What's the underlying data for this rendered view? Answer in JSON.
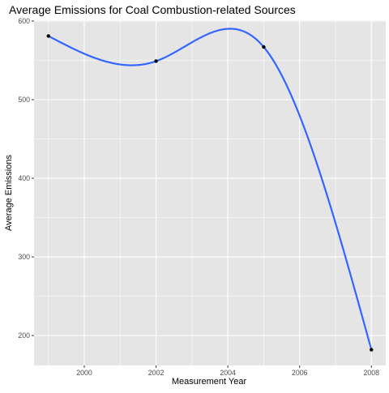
{
  "chart_data": {
    "type": "line",
    "title": "Average Emissions for Coal Combustion-related Sources",
    "xlabel": "Measurement Year",
    "ylabel": "Average Emissions",
    "x": [
      1999,
      2002,
      2005,
      2008
    ],
    "series": [
      {
        "values": [
          581,
          549,
          567,
          182
        ]
      }
    ],
    "xlim": [
      1998.6,
      2008.4
    ],
    "ylim": [
      162,
      601
    ],
    "xticks": [
      2000,
      2002,
      2004,
      2006,
      2008
    ],
    "yticks": [
      200,
      300,
      400,
      500,
      600
    ],
    "grid": true,
    "legend": "none",
    "colors": {
      "panel_background": "#e5e5e5",
      "grid_major": "#ffffff",
      "line": "#3366ff",
      "points": "#000000",
      "text": "#000000",
      "tick_text": "#4d4d4d",
      "tick_marks": "#333333"
    }
  }
}
